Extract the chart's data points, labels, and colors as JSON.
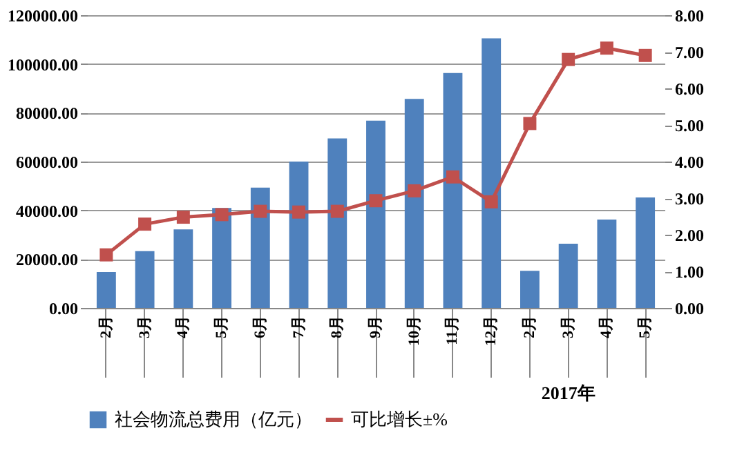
{
  "chart_data": {
    "type": "bar",
    "categories": [
      "2月",
      "3月",
      "4月",
      "5月",
      "6月",
      "7月",
      "8月",
      "9月",
      "10月",
      "11月",
      "12月",
      "2月",
      "3月",
      "4月",
      "5月"
    ],
    "series": [
      {
        "name": "社会物流总费用（亿元）",
        "color": "#4f81bd",
        "values": [
          14700,
          23300,
          32200,
          41000,
          49300,
          60000,
          69500,
          76800,
          85700,
          96300,
          110500,
          15200,
          26300,
          36200,
          45300
        ]
      },
      {
        "name": "可比增长±%",
        "type": "line",
        "axis": "y2",
        "color": "#c0504d",
        "marker": "square",
        "values": [
          1.45,
          2.29,
          2.48,
          2.55,
          2.64,
          2.62,
          2.64,
          2.93,
          3.2,
          3.58,
          2.9,
          5.04,
          6.79,
          7.1,
          6.9
        ]
      }
    ],
    "ylim": [
      0,
      120000
    ],
    "yticks": [
      {
        "value": 0,
        "label": "0.00"
      },
      {
        "value": 20000,
        "label": "20000.00"
      },
      {
        "value": 40000,
        "label": "40000.00"
      },
      {
        "value": 60000,
        "label": "60000.00"
      },
      {
        "value": 80000,
        "label": "80000.00"
      },
      {
        "value": 100000,
        "label": "100000.00"
      },
      {
        "value": 120000,
        "label": "120000.00"
      }
    ],
    "y2lim": [
      0,
      8
    ],
    "y2ticks": [
      {
        "value": 0,
        "label": "0.00"
      },
      {
        "value": 1,
        "label": "1.00"
      },
      {
        "value": 2,
        "label": "2.00"
      },
      {
        "value": 3,
        "label": "3.00"
      },
      {
        "value": 4,
        "label": "4.00"
      },
      {
        "value": 5,
        "label": "5.00"
      },
      {
        "value": 6,
        "label": "6.00"
      },
      {
        "value": 7,
        "label": "7.00"
      },
      {
        "value": 8,
        "label": "8.00"
      }
    ],
    "annotations": [
      "2017年"
    ],
    "grid": "y",
    "legend": "bottom"
  }
}
